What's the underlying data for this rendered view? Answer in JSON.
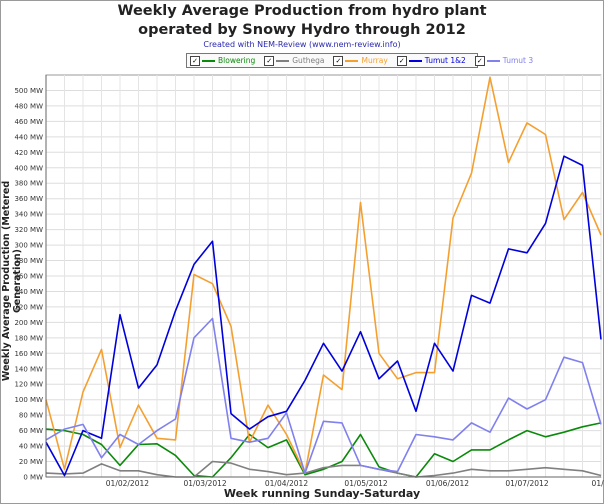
{
  "chart_data": {
    "type": "line",
    "title": "Weekly Average Production from hydro plant operated by Snowy Hydro through 2012",
    "title_lines": [
      "Weekly Average Production from hydro plant",
      "operated by Snowy Hydro through 2012"
    ],
    "subtitle": "Created with NEM-Review (www.nem-review.info)",
    "xlabel": "Week running Sunday-Saturday",
    "ylabel": "Weekly Average Production (Metered Generation)",
    "ylim": [
      0,
      520
    ],
    "yticks": [
      0,
      20,
      40,
      60,
      80,
      100,
      120,
      140,
      160,
      180,
      200,
      220,
      240,
      260,
      280,
      300,
      320,
      340,
      360,
      380,
      400,
      420,
      440,
      460,
      480,
      500
    ],
    "ytick_suffix": " MW",
    "xticks": [
      "01/02/2012",
      "01/03/2012",
      "01/04/2012",
      "01/05/2012",
      "01/06/2012",
      "01/07/2012",
      "01/08/20"
    ],
    "xtick_weeks": [
      4.4,
      8.6,
      13.0,
      17.3,
      21.7,
      26.0,
      30.4
    ],
    "x_weeks": 31,
    "grid": true,
    "legend_position": "top",
    "series": [
      {
        "name": "Blowering",
        "color": "#0a8a0a",
        "values": [
          62,
          60,
          55,
          42,
          15,
          42,
          43,
          28,
          2,
          0,
          25,
          55,
          38,
          48,
          3,
          10,
          20,
          55,
          13,
          5,
          0,
          30,
          20,
          35,
          35,
          48,
          60,
          52,
          58,
          65,
          70
        ]
      },
      {
        "name": "Guthega",
        "color": "#808080",
        "values": [
          5,
          4,
          5,
          17,
          8,
          8,
          3,
          0,
          0,
          20,
          18,
          10,
          7,
          3,
          5,
          12,
          15,
          15,
          10,
          5,
          0,
          2,
          5,
          10,
          8,
          8,
          10,
          12,
          10,
          8,
          2
        ]
      },
      {
        "name": "Murray",
        "color": "#f4a030",
        "values": [
          100,
          10,
          110,
          165,
          38,
          93,
          50,
          48,
          262,
          250,
          195,
          45,
          93,
          55,
          5,
          132,
          113,
          355,
          160,
          127,
          135,
          135,
          335,
          393,
          517,
          407,
          458,
          443,
          333,
          368,
          313
        ]
      },
      {
        "name": "Tumut 1&2",
        "color": "#0000dd",
        "values": [
          45,
          2,
          60,
          50,
          210,
          115,
          145,
          215,
          275,
          305,
          82,
          62,
          78,
          85,
          125,
          173,
          137,
          188,
          127,
          150,
          85,
          173,
          137,
          235,
          225,
          295,
          290,
          328,
          415,
          403,
          178
        ]
      },
      {
        "name": "Tumut 3",
        "color": "#8080ee",
        "values": [
          48,
          62,
          68,
          25,
          55,
          42,
          60,
          75,
          180,
          205,
          50,
          45,
          50,
          83,
          5,
          72,
          70,
          15,
          10,
          7,
          55,
          52,
          48,
          70,
          58,
          102,
          88,
          100,
          155,
          148,
          68
        ]
      }
    ]
  }
}
